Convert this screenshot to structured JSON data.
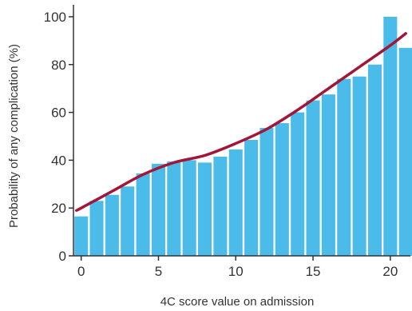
{
  "chart_data": {
    "type": "bar",
    "xlabel": "4C score value on admission",
    "ylabel": "Probability of any complication (%)",
    "x": [
      0,
      1,
      2,
      3,
      4,
      5,
      6,
      7,
      8,
      9,
      10,
      11,
      12,
      13,
      14,
      15,
      16,
      17,
      18,
      19,
      20,
      21
    ],
    "values": [
      16.5,
      23,
      25.5,
      29,
      34.5,
      38.5,
      39.5,
      40,
      39,
      41.5,
      44.5,
      48.5,
      53.5,
      55.5,
      60,
      65,
      67.5,
      74,
      75,
      80,
      100,
      87
    ],
    "trend": {
      "x": [
        -0.3,
        0,
        2,
        4,
        6,
        8,
        10,
        12,
        14,
        16,
        18,
        20,
        21
      ],
      "y": [
        19,
        20,
        27,
        34,
        39,
        42,
        47,
        53,
        61,
        70,
        79,
        88,
        93
      ]
    },
    "xlim": [
      -0.5,
      21.3
    ],
    "ylim": [
      0,
      105
    ],
    "x_ticks": [
      0,
      5,
      10,
      15,
      20
    ],
    "y_ticks": [
      0,
      20,
      40,
      60,
      80,
      100
    ],
    "grid": false,
    "colors": {
      "bar": "#4bbbe9",
      "trend": "#a31638",
      "axis": "#333333"
    }
  }
}
